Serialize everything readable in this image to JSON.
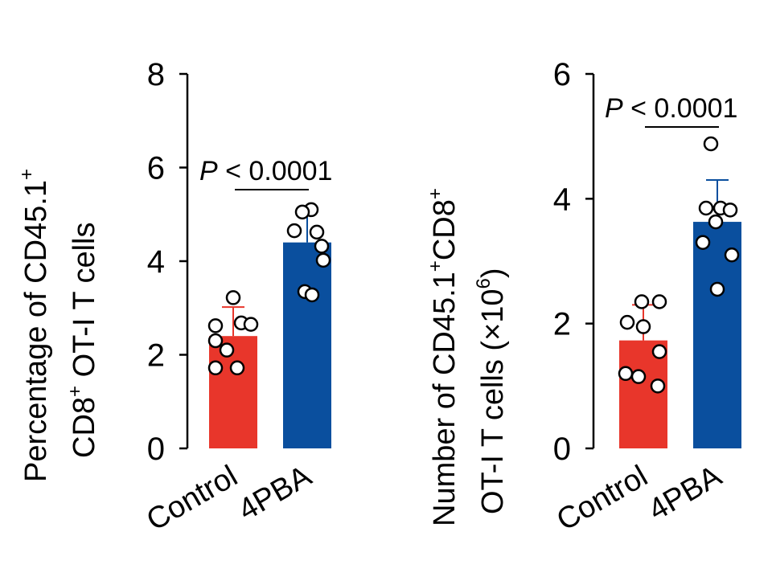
{
  "chart_data": [
    {
      "type": "bar",
      "ylabel_line1_main": "Percentage of CD45.1",
      "ylabel_line1_sup": "+",
      "ylabel_line2_main": "CD8",
      "ylabel_line2_sup": "+",
      "ylabel_line2_rest": " OT-I T cells",
      "ylim": [
        0,
        8
      ],
      "yticks": [
        0,
        2,
        4,
        6,
        8
      ],
      "categories": [
        "Control",
        "4PBA"
      ],
      "values": [
        2.4,
        4.4
      ],
      "errors": [
        0.62,
        0.68
      ],
      "colors": [
        "#e8362b",
        "#0a4f9e"
      ],
      "points": [
        [
          3.22,
          2.62,
          2.68,
          2.65,
          2.3,
          2.1,
          1.72,
          1.72
        ],
        [
          5.1,
          5.05,
          4.65,
          4.62,
          4.32,
          3.35,
          3.28,
          4.02
        ]
      ],
      "annotation_p": "P",
      "annotation_rest": " < 0.0001"
    },
    {
      "type": "bar",
      "ylabel_line1_main": "Number of CD45.1",
      "ylabel_line1_sup": "+",
      "ylabel_line1_mid": "CD8",
      "ylabel_line1_sup2": "+",
      "ylabel_line2_main": "OT-I T cells  (×10",
      "ylabel_line2_sup": "6",
      "ylabel_line2_rest": ")",
      "ylim": [
        0,
        6
      ],
      "yticks": [
        0,
        2,
        4,
        6
      ],
      "categories": [
        "Control",
        "4PBA"
      ],
      "values": [
        1.73,
        3.63
      ],
      "errors": [
        0.57,
        0.67
      ],
      "colors": [
        "#e8362b",
        "#0a4f9e"
      ],
      "points": [
        [
          2.35,
          2.35,
          2.02,
          1.95,
          1.55,
          1.2,
          1.15,
          1.0
        ],
        [
          4.88,
          3.85,
          3.85,
          3.82,
          3.63,
          3.3,
          3.1,
          2.55
        ]
      ],
      "annotation_p": "P",
      "annotation_rest": " < 0.0001"
    }
  ]
}
